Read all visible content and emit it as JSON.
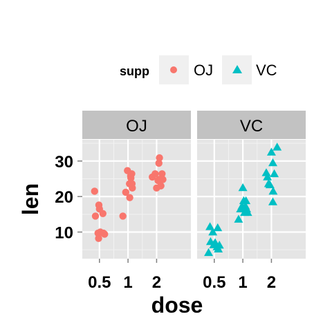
{
  "chart_data": {
    "type": "scatter",
    "xlabel": "dose",
    "ylabel": "len",
    "x_categories": [
      "0.5",
      "1",
      "2"
    ],
    "y_ticks": [
      10,
      20,
      30
    ],
    "ylim": [
      2.5,
      36
    ],
    "grid": true,
    "legend": {
      "title": "supp",
      "position": "top",
      "entries": [
        {
          "label": "OJ",
          "shape": "circle",
          "color": "#F8766D"
        },
        {
          "label": "VC",
          "shape": "triangle",
          "color": "#00BFC4"
        }
      ]
    },
    "panels": [
      {
        "strip": "OJ",
        "color": "#F8766D",
        "shape": "circle",
        "points": [
          {
            "x": "0.5",
            "jitter": -0.17,
            "y": 21.5
          },
          {
            "x": "0.5",
            "jitter": -0.14,
            "y": 14.5
          },
          {
            "x": "0.5",
            "jitter": -0.02,
            "y": 17.6
          },
          {
            "x": "0.5",
            "jitter": 0.0,
            "y": 16.5
          },
          {
            "x": "0.5",
            "jitter": 0.12,
            "y": 15.2
          },
          {
            "x": "0.5",
            "jitter": -0.05,
            "y": 9.7
          },
          {
            "x": "0.5",
            "jitter": 0.14,
            "y": 9.7
          },
          {
            "x": "0.5",
            "jitter": 0.18,
            "y": 9.4
          },
          {
            "x": "0.5",
            "jitter": -0.03,
            "y": 8.2
          },
          {
            "x": "0.5",
            "jitter": 0.03,
            "y": 10.0
          },
          {
            "x": "1",
            "jitter": -0.18,
            "y": 14.5
          },
          {
            "x": "1",
            "jitter": -0.08,
            "y": 21.2
          },
          {
            "x": "1",
            "jitter": -0.02,
            "y": 27.3
          },
          {
            "x": "1",
            "jitter": 0.05,
            "y": 23.6
          },
          {
            "x": "1",
            "jitter": 0.13,
            "y": 26.4
          },
          {
            "x": "1",
            "jitter": 0.1,
            "y": 25.2
          },
          {
            "x": "1",
            "jitter": 0.09,
            "y": 25.8
          },
          {
            "x": "1",
            "jitter": 0.15,
            "y": 22.4
          },
          {
            "x": "1",
            "jitter": 0.06,
            "y": 19.7
          },
          {
            "x": "1",
            "jitter": 0.14,
            "y": 23.6
          },
          {
            "x": "2",
            "jitter": -0.15,
            "y": 25.5
          },
          {
            "x": "2",
            "jitter": -0.05,
            "y": 26.4
          },
          {
            "x": "2",
            "jitter": 0.0,
            "y": 22.4
          },
          {
            "x": "2",
            "jitter": 0.05,
            "y": 24.5
          },
          {
            "x": "2",
            "jitter": 0.08,
            "y": 24.8
          },
          {
            "x": "2",
            "jitter": 0.1,
            "y": 30.9
          },
          {
            "x": "2",
            "jitter": 0.08,
            "y": 29.4
          },
          {
            "x": "2",
            "jitter": 0.15,
            "y": 23.0
          },
          {
            "x": "2",
            "jitter": 0.19,
            "y": 26.4
          },
          {
            "x": "2",
            "jitter": 0.22,
            "y": 24.8
          }
        ]
      },
      {
        "strip": "VC",
        "color": "#00BFC4",
        "shape": "triangle",
        "points": [
          {
            "x": "0.5",
            "jitter": -0.15,
            "y": 11.5
          },
          {
            "x": "0.5",
            "jitter": -0.05,
            "y": 10.0
          },
          {
            "x": "0.5",
            "jitter": 0.12,
            "y": 11.2
          },
          {
            "x": "0.5",
            "jitter": -0.13,
            "y": 7.3
          },
          {
            "x": "0.5",
            "jitter": -0.02,
            "y": 6.4
          },
          {
            "x": "0.5",
            "jitter": 0.03,
            "y": 7.0
          },
          {
            "x": "0.5",
            "jitter": 0.1,
            "y": 5.8
          },
          {
            "x": "0.5",
            "jitter": 0.14,
            "y": 5.2
          },
          {
            "x": "0.5",
            "jitter": 0.18,
            "y": 6.3
          },
          {
            "x": "0.5",
            "jitter": -0.2,
            "y": 4.2
          },
          {
            "x": "1",
            "jitter": -0.15,
            "y": 13.6
          },
          {
            "x": "1",
            "jitter": -0.08,
            "y": 16.5
          },
          {
            "x": "1",
            "jitter": -0.03,
            "y": 17.3
          },
          {
            "x": "1",
            "jitter": 0.0,
            "y": 22.5
          },
          {
            "x": "1",
            "jitter": 0.03,
            "y": 18.8
          },
          {
            "x": "1",
            "jitter": 0.06,
            "y": 15.5
          },
          {
            "x": "1",
            "jitter": 0.09,
            "y": 17.3
          },
          {
            "x": "1",
            "jitter": 0.13,
            "y": 16.5
          },
          {
            "x": "1",
            "jitter": 0.17,
            "y": 15.5
          },
          {
            "x": "1",
            "jitter": 0.11,
            "y": 18.8
          },
          {
            "x": "2",
            "jitter": -0.18,
            "y": 26.7
          },
          {
            "x": "2",
            "jitter": -0.14,
            "y": 25.5
          },
          {
            "x": "2",
            "jitter": -0.1,
            "y": 23.6
          },
          {
            "x": "2",
            "jitter": -0.05,
            "y": 23.3
          },
          {
            "x": "2",
            "jitter": 0.0,
            "y": 32.5
          },
          {
            "x": "2",
            "jitter": 0.05,
            "y": 29.5
          },
          {
            "x": "2",
            "jitter": 0.1,
            "y": 26.4
          },
          {
            "x": "2",
            "jitter": 0.06,
            "y": 21.5
          },
          {
            "x": "2",
            "jitter": 0.05,
            "y": 18.5
          },
          {
            "x": "2",
            "jitter": 0.2,
            "y": 33.9
          }
        ]
      }
    ]
  }
}
